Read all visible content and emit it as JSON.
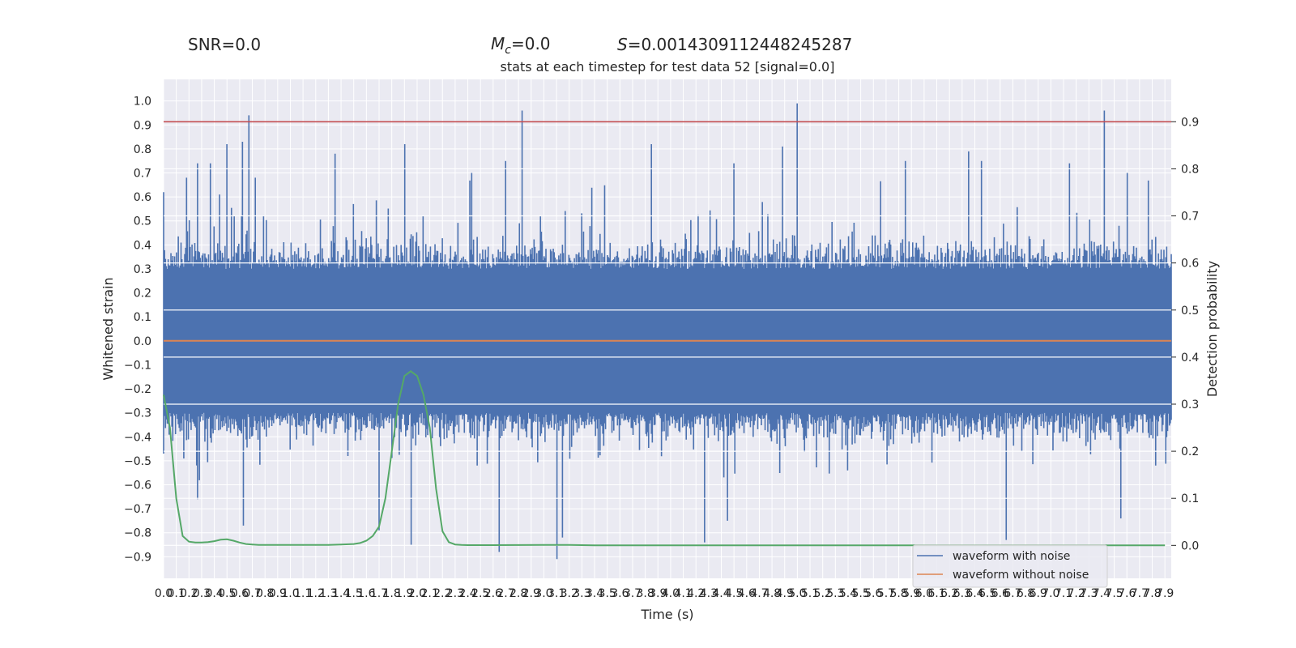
{
  "header": {
    "snr_text": "SNR=0.0",
    "mc_sym": "M",
    "mc_sub": "c",
    "mc_val": "=0.0",
    "s_sym": "S",
    "s_val": "=0.0014309112448245287"
  },
  "chart_data": {
    "type": "line",
    "title": "stats at each timestep for test data 52 [signal=0.0]",
    "xlabel": "Time (s)",
    "ylabel_left": "Whitened strain",
    "ylabel_right": "Detection probability",
    "xlim": [
      0.0,
      7.95
    ],
    "ylim_left": [
      -0.99,
      1.09
    ],
    "ylim_right": [
      -0.07,
      0.99
    ],
    "grid": true,
    "legend_position": "lower-right",
    "x_ticks": [
      "0.0",
      "0.1",
      "0.2",
      "0.3",
      "0.4",
      "0.5",
      "0.6",
      "0.7",
      "0.8",
      "0.9",
      "1.0",
      "1.1",
      "1.2",
      "1.3",
      "1.4",
      "1.5",
      "1.6",
      "1.7",
      "1.8",
      "1.9",
      "2.0",
      "2.1",
      "2.2",
      "2.3",
      "2.4",
      "2.5",
      "2.6",
      "2.7",
      "2.8",
      "2.9",
      "3.0",
      "3.1",
      "3.2",
      "3.3",
      "3.4",
      "3.5",
      "3.6",
      "3.7",
      "3.8",
      "3.9",
      "4.0",
      "4.1",
      "4.2",
      "4.3",
      "4.4",
      "4.5",
      "4.6",
      "4.7",
      "4.8",
      "4.9",
      "5.0",
      "5.1",
      "5.2",
      "5.3",
      "5.4",
      "5.5",
      "5.6",
      "5.7",
      "5.8",
      "5.9",
      "6.0",
      "6.1",
      "6.2",
      "6.3",
      "6.4",
      "6.5",
      "6.6",
      "6.7",
      "6.8",
      "6.9",
      "7.0",
      "7.1",
      "7.2",
      "7.3",
      "7.4",
      "7.5",
      "7.6",
      "7.7",
      "7.8",
      "7.9"
    ],
    "y_ticks_left": [
      "1.0",
      "0.9",
      "0.8",
      "0.7",
      "0.6",
      "0.5",
      "0.4",
      "0.3",
      "0.2",
      "0.1",
      "0.0",
      "−0.1",
      "−0.2",
      "−0.3",
      "−0.4",
      "−0.5",
      "−0.6",
      "−0.7",
      "−0.8",
      "−0.9"
    ],
    "y_ticks_right": [
      "0.9",
      "0.8",
      "0.7",
      "0.6",
      "0.5",
      "0.4",
      "0.3",
      "0.2",
      "0.1",
      "0.0"
    ],
    "threshold_line": {
      "value": 0.9,
      "axis": "right",
      "color": "#c44e52"
    },
    "series": [
      {
        "name": "waveform with noise",
        "axis": "left",
        "color": "#4c72b0",
        "seed": 52,
        "upper_envelope_typical": 0.3,
        "lower_envelope_typical": -0.3,
        "upper_peaks": [
          [
            0.0,
            0.62
          ],
          [
            0.18,
            0.68
          ],
          [
            0.27,
            0.74
          ],
          [
            0.37,
            0.74
          ],
          [
            0.44,
            0.61
          ],
          [
            0.5,
            0.82
          ],
          [
            0.62,
            0.83
          ],
          [
            0.67,
            0.94
          ],
          [
            0.72,
            0.68
          ],
          [
            1.35,
            0.78
          ],
          [
            1.9,
            0.82
          ],
          [
            2.43,
            0.7
          ],
          [
            2.7,
            0.75
          ],
          [
            2.83,
            0.96
          ],
          [
            3.85,
            0.82
          ],
          [
            4.5,
            0.74
          ],
          [
            4.88,
            0.81
          ],
          [
            5.0,
            0.99
          ],
          [
            5.85,
            0.75
          ],
          [
            6.35,
            0.79
          ],
          [
            6.45,
            0.75
          ],
          [
            7.15,
            0.74
          ],
          [
            7.42,
            0.96
          ],
          [
            7.6,
            0.7
          ]
        ],
        "lower_peaks": [
          [
            0.0,
            -0.47
          ],
          [
            0.27,
            -0.66
          ],
          [
            0.63,
            -0.77
          ],
          [
            1.7,
            -0.79
          ],
          [
            1.95,
            -0.85
          ],
          [
            2.65,
            -0.88
          ],
          [
            3.1,
            -0.91
          ],
          [
            3.15,
            -0.82
          ],
          [
            4.27,
            -0.84
          ],
          [
            4.45,
            -0.75
          ],
          [
            6.65,
            -0.83
          ],
          [
            7.55,
            -0.74
          ]
        ]
      },
      {
        "name": "waveform without noise",
        "axis": "left",
        "color": "#dd8452",
        "x": [
          0.0,
          7.95
        ],
        "y": [
          0.0,
          0.0
        ]
      },
      {
        "name": "",
        "axis": "right",
        "color": "#55a868",
        "x": [
          0.0,
          0.05,
          0.1,
          0.15,
          0.2,
          0.25,
          0.3,
          0.35,
          0.4,
          0.45,
          0.5,
          0.55,
          0.6,
          0.65,
          0.7,
          0.75,
          0.8,
          0.85,
          0.9,
          0.95,
          1.0,
          1.1,
          1.2,
          1.3,
          1.4,
          1.5,
          1.55,
          1.6,
          1.65,
          1.7,
          1.75,
          1.8,
          1.85,
          1.9,
          1.95,
          2.0,
          2.05,
          2.1,
          2.15,
          2.2,
          2.25,
          2.3,
          2.35,
          2.4,
          2.5,
          2.6,
          2.8,
          3.0,
          3.2,
          3.4,
          3.6,
          4.0,
          5.0,
          6.0,
          7.0,
          7.9
        ],
        "y": [
          0.32,
          0.25,
          0.1,
          0.02,
          0.008,
          0.006,
          0.006,
          0.007,
          0.009,
          0.012,
          0.013,
          0.01,
          0.006,
          0.003,
          0.002,
          0.001,
          0.001,
          0.001,
          0.001,
          0.001,
          0.001,
          0.001,
          0.001,
          0.001,
          0.002,
          0.003,
          0.005,
          0.01,
          0.02,
          0.04,
          0.1,
          0.2,
          0.3,
          0.36,
          0.37,
          0.36,
          0.32,
          0.25,
          0.12,
          0.03,
          0.007,
          0.002,
          0.001,
          0.0005,
          0.0005,
          0.0005,
          0.0007,
          0.001,
          0.001,
          0.0,
          0.0,
          0.0,
          0.0,
          0.0,
          0.0,
          0.0
        ]
      }
    ]
  }
}
